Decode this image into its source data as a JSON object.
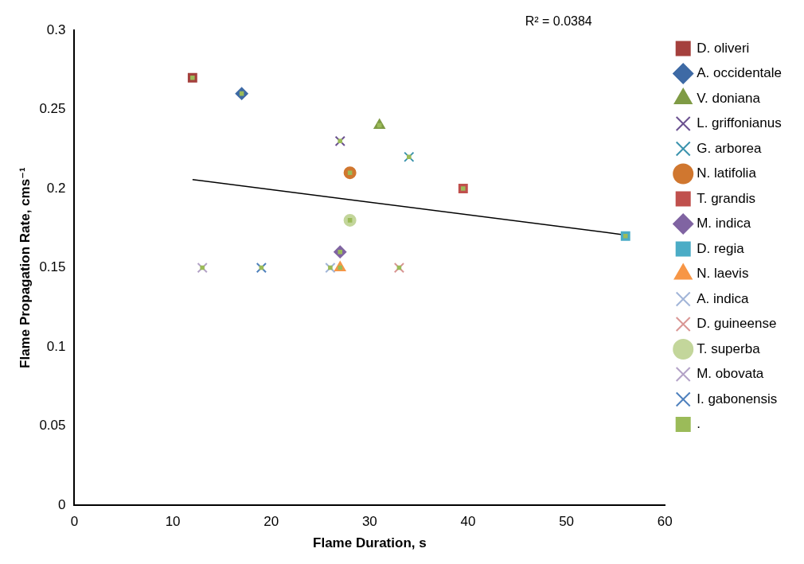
{
  "chart_data": {
    "type": "scatter",
    "xlabel": "Flame Duration, s",
    "ylabel": "Flame Propagation Rate, cms⁻¹",
    "xlim": [
      0,
      60
    ],
    "xticks": [
      0,
      10,
      20,
      30,
      40,
      50,
      60
    ],
    "ylim": [
      0,
      0.3
    ],
    "yticks": [
      0,
      0.05,
      0.1,
      0.15,
      0.2,
      0.25,
      0.3
    ],
    "grid": false,
    "legend": "right",
    "annotations": [
      "R² = 0.0384"
    ],
    "series": [
      {
        "name": "D. oliveri",
        "color": "#a5403d",
        "marker": "square",
        "x": [
          12
        ],
        "values": [
          0.27
        ]
      },
      {
        "name": "A. occidentale",
        "color": "#3e6aa5",
        "marker": "diamond",
        "x": [
          17
        ],
        "values": [
          0.26
        ]
      },
      {
        "name": "V. doniana",
        "color": "#7f9b45",
        "marker": "triangle",
        "x": [
          31
        ],
        "values": [
          0.24
        ]
      },
      {
        "name": "L. griffonianus",
        "color": "#6b5190",
        "marker": "cross",
        "x": [
          27
        ],
        "values": [
          0.23
        ]
      },
      {
        "name": "G. arborea",
        "color": "#3b93ad",
        "marker": "cross",
        "x": [
          34
        ],
        "values": [
          0.22
        ]
      },
      {
        "name": "N. latifolia",
        "color": "#d0772f",
        "marker": "circle",
        "x": [
          28
        ],
        "values": [
          0.21
        ]
      },
      {
        "name": "T. grandis",
        "color": "#c0504d",
        "marker": "square",
        "x": [
          39.5
        ],
        "values": [
          0.2
        ]
      },
      {
        "name": "M. indica",
        "color": "#8064a2",
        "marker": "diamond",
        "x": [
          27
        ],
        "values": [
          0.16
        ]
      },
      {
        "name": "D. regia",
        "color": "#4bacc6",
        "marker": "square",
        "x": [
          56
        ],
        "values": [
          0.17
        ]
      },
      {
        "name": "N. laevis",
        "color": "#f79646",
        "marker": "triangle",
        "x": [
          27
        ],
        "values": [
          0.15
        ]
      },
      {
        "name": "A. indica",
        "color": "#a2b5d8",
        "marker": "cross",
        "x": [
          26
        ],
        "values": [
          0.15
        ]
      },
      {
        "name": "D. guineense",
        "color": "#d99694",
        "marker": "cross",
        "x": [
          33
        ],
        "values": [
          0.15
        ]
      },
      {
        "name": "T. superba",
        "color": "#c3d69b",
        "marker": "circle",
        "x": [
          28
        ],
        "values": [
          0.18
        ]
      },
      {
        "name": "M. obovata",
        "color": "#b3a2c7",
        "marker": "cross",
        "x": [
          13
        ],
        "values": [
          0.15
        ]
      },
      {
        "name": "I. gabonensis",
        "color": "#4f81bd",
        "marker": "cross",
        "x": [
          19
        ],
        "values": [
          0.15
        ]
      },
      {
        "name": ".",
        "color": "#9bbb59",
        "marker": "square",
        "x": [
          12,
          17,
          31,
          27,
          34,
          28,
          39.5,
          27,
          56,
          27,
          26,
          33,
          28,
          13,
          19
        ],
        "values": [
          0.27,
          0.26,
          0.24,
          0.23,
          0.22,
          0.21,
          0.2,
          0.16,
          0.17,
          0.15,
          0.15,
          0.15,
          0.18,
          0.15,
          0.15
        ]
      },
      {
        "type": "line",
        "color": "#000000",
        "marker": "none",
        "x": [
          12,
          56
        ],
        "values": [
          0.2057,
          0.1707
        ]
      }
    ]
  }
}
